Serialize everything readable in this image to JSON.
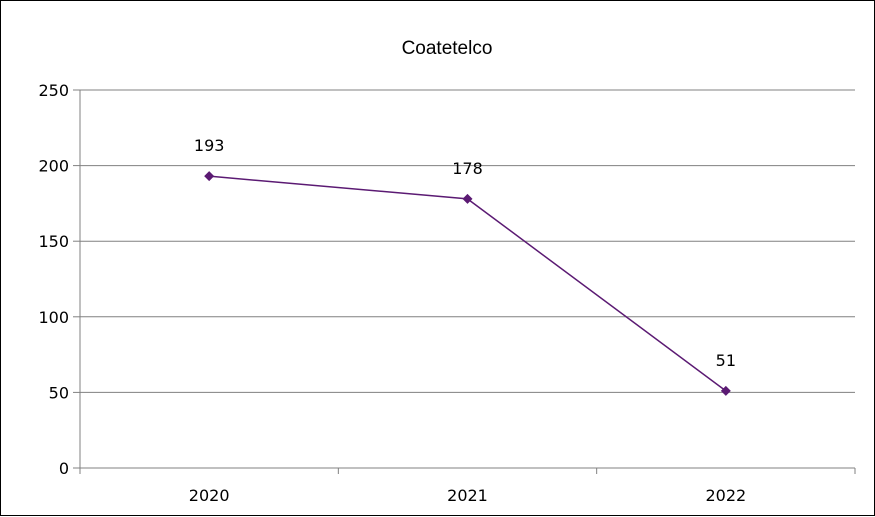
{
  "chart_data": {
    "type": "line",
    "title": "Coatetelco",
    "categories": [
      "2020",
      "2021",
      "2022"
    ],
    "series": [
      {
        "values": [
          193,
          178,
          51
        ],
        "data_labels": [
          "193",
          "178",
          "51"
        ],
        "color": "#5b1a73"
      }
    ],
    "ylim": [
      0,
      250
    ],
    "yticks": [
      0,
      50,
      100,
      150,
      200,
      250
    ],
    "xlabel": "",
    "ylabel": "",
    "grid": true,
    "legend": "none",
    "marker": "diamond",
    "gridline_color": "#808080"
  }
}
